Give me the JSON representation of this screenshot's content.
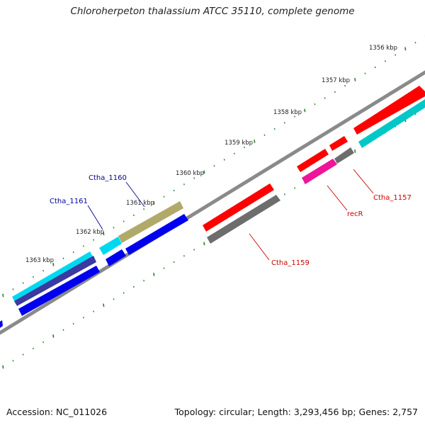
{
  "title": "Chloroherpeton thalassium ATCC 35110, complete genome",
  "footer": {
    "accession": "Accession: NC_011026",
    "topology": "Topology: circular; Length: 3,293,456 bp; Genes: 2,757"
  },
  "colors": {
    "backbone": "#8a8a8a",
    "tick": "#2e7d32",
    "label_forward": "#000099",
    "label_reverse": "#cc0000"
  },
  "scale_labels": [
    "1356 kbp",
    "1357 kbp",
    "1358 kbp",
    "1359 kbp",
    "1360 kbp",
    "1361 kbp",
    "1362 kbp",
    "1363 kbp"
  ],
  "gene_labels": [
    {
      "name": "Ctha_1160",
      "strand": "forward"
    },
    {
      "name": "Ctha_1161",
      "strand": "forward"
    },
    {
      "name": "Ctha_1159",
      "strand": "reverse"
    },
    {
      "name": "recR",
      "strand": "reverse"
    },
    {
      "name": "Ctha_1157",
      "strand": "reverse"
    }
  ],
  "features": [
    {
      "color": "#8f8f8f",
      "kind": "forward-cds"
    },
    {
      "color": "#ff0000",
      "kind": "forward-cds"
    },
    {
      "color": "#00c8c8",
      "kind": "forward-cds"
    },
    {
      "color": "#ff0000",
      "kind": "forward-cds"
    },
    {
      "color": "#6d6d6d",
      "kind": "forward-cds"
    },
    {
      "color": "#ff0000",
      "kind": "forward-cds"
    },
    {
      "color": "#ee1599",
      "kind": "forward-cds"
    },
    {
      "color": "#ff0000",
      "kind": "reverse-cds"
    },
    {
      "color": "#6d6d6d",
      "kind": "reverse-cds"
    },
    {
      "color": "#b0a96a",
      "kind": "reverse-cds"
    },
    {
      "color": "#0000ee",
      "kind": "reverse-cds"
    },
    {
      "color": "#00d8f0",
      "kind": "reverse-cds"
    },
    {
      "color": "#0000ee",
      "kind": "reverse-cds"
    },
    {
      "color": "#00d8f0",
      "kind": "reverse-cds"
    },
    {
      "color": "#3a3aa0",
      "kind": "reverse-cds"
    },
    {
      "color": "#0000ee",
      "kind": "reverse-cds"
    },
    {
      "color": "#0000ee",
      "kind": "reverse-cds"
    }
  ]
}
